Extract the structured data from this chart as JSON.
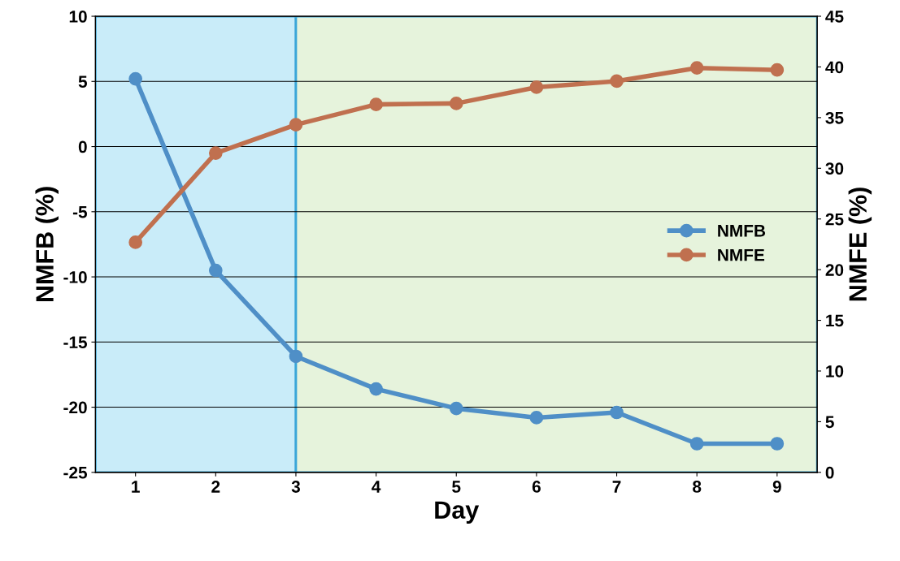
{
  "chart_data": {
    "type": "line",
    "xlabel": "Day",
    "ylabel": "NMFB (%)",
    "y2label": "NMFE (%)",
    "x": [
      1,
      2,
      3,
      4,
      5,
      6,
      7,
      8,
      9
    ],
    "xlim": [
      0.5,
      9.5
    ],
    "xticks": [
      1,
      2,
      3,
      4,
      5,
      6,
      7,
      8,
      9
    ],
    "ylim": [
      -25,
      10
    ],
    "yticks": [
      -25,
      -20,
      -15,
      -10,
      -5,
      0,
      5,
      10
    ],
    "y2lim": [
      0,
      45
    ],
    "y2ticks": [
      0,
      5,
      10,
      15,
      20,
      25,
      30,
      35,
      40,
      45
    ],
    "series": [
      {
        "name": "NMFB",
        "color": "#4f8fc7",
        "values": [
          5.2,
          -9.5,
          -16.1,
          -18.6,
          -20.1,
          -20.8,
          -20.4,
          -22.8,
          -22.8
        ]
      },
      {
        "name": "NMFE",
        "color": "#c0704f",
        "axis": "y2",
        "values": [
          22.7,
          31.5,
          34.3,
          36.3,
          36.4,
          38.0,
          38.6,
          39.9,
          39.7
        ]
      }
    ],
    "bands": [
      {
        "axis": "x",
        "from": 0.5,
        "to": 3,
        "color": "#c9ecf9"
      },
      {
        "axis": "x",
        "from": 3,
        "to": 9.5,
        "color": "#e6f3dc"
      }
    ],
    "grid": "y",
    "legend": "right",
    "marker": "circle",
    "line_style": "solid"
  }
}
